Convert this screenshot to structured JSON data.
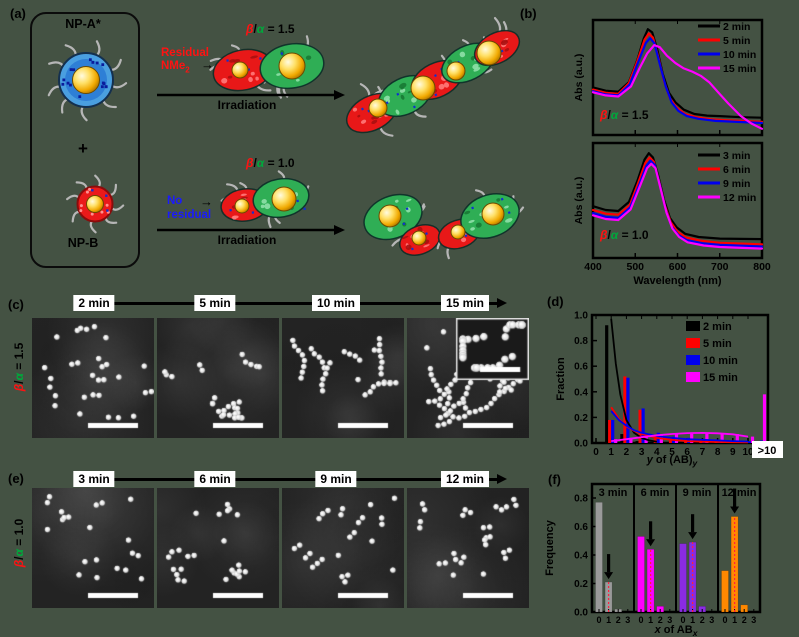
{
  "colors": {
    "background": "#445243",
    "black": "#000000",
    "red": "#ff0000",
    "blue": "#0000ee",
    "magenta": "#ff00ff",
    "gray_bars": "#9a9a9a",
    "violet_bars": "#8a2be2",
    "orange_bars": "#ff8800",
    "np_a_shell": "#4a9fe0",
    "np_b_shell": "#ea1a1a",
    "blob_green": "#2fae55",
    "blob_red": "#e81818",
    "gold_core": "#ffd24a",
    "polymer_gray": "#b6b6b6"
  },
  "symbols": {
    "beta": "β",
    "slash": "/",
    "alpha": "α"
  },
  "panel_a": {
    "label": "(a)",
    "np_a_label": "NP-A*",
    "plus": "+",
    "np_b_label": "NP-B",
    "residual_line1": "Residual",
    "residual_line2_base": "NMe",
    "residual_line2_sub": "2",
    "small_arrow": "→",
    "no_residual_line1": "No",
    "no_residual_line2": "residual",
    "irradiation_top": "Irradiation",
    "irradiation_bottom": "Irradiation",
    "ratio_top_eq": " = 1.5",
    "ratio_bottom_eq": " = 1.0"
  },
  "panel_b": {
    "label": "(b)",
    "ratio_top_eq": " = 1.5",
    "ratio_bottom_eq": " = 1.0"
  },
  "panel_c": {
    "label": "(c)",
    "ratio_eq": " = 1.5",
    "times": [
      "2 min",
      "5 min",
      "10 min",
      "15 min"
    ]
  },
  "panel_d": {
    "label": "(d)"
  },
  "panel_e": {
    "label": "(e)",
    "ratio_eq": " = 1.0",
    "times": [
      "3 min",
      "6 min",
      "9 min",
      "12 min"
    ]
  },
  "panel_f": {
    "label": "(f)"
  },
  "chart_data": [
    {
      "id": "spec-top",
      "type": "line",
      "ylabel": "Abs (a.u.)",
      "xlabel": "Wavelength (nm)",
      "xlim": [
        400,
        800
      ],
      "xticks": [
        "400",
        "500",
        "600",
        "700",
        "800"
      ],
      "show_xticklabels": false,
      "annotation": "β/α = 1.5",
      "legend_position": "top-right",
      "series": [
        {
          "name": "2 min",
          "color": "#000000",
          "points": [
            [
              400,
              0.42
            ],
            [
              430,
              0.39
            ],
            [
              460,
              0.38
            ],
            [
              485,
              0.47
            ],
            [
              505,
              0.68
            ],
            [
              520,
              0.88
            ],
            [
              530,
              0.97
            ],
            [
              540,
              0.94
            ],
            [
              552,
              0.78
            ],
            [
              565,
              0.55
            ],
            [
              580,
              0.37
            ],
            [
              595,
              0.28
            ],
            [
              615,
              0.21
            ],
            [
              640,
              0.17
            ],
            [
              670,
              0.155
            ],
            [
              700,
              0.15
            ],
            [
              750,
              0.14
            ],
            [
              800,
              0.135
            ]
          ]
        },
        {
          "name": "5 min",
          "color": "#ff0000",
          "points": [
            [
              400,
              0.4
            ],
            [
              430,
              0.37
            ],
            [
              460,
              0.36
            ],
            [
              485,
              0.46
            ],
            [
              505,
              0.67
            ],
            [
              522,
              0.87
            ],
            [
              532,
              0.93
            ],
            [
              542,
              0.89
            ],
            [
              555,
              0.7
            ],
            [
              568,
              0.48
            ],
            [
              582,
              0.32
            ],
            [
              598,
              0.23
            ],
            [
              618,
              0.17
            ],
            [
              645,
              0.14
            ],
            [
              680,
              0.12
            ],
            [
              720,
              0.11
            ],
            [
              800,
              0.095
            ]
          ]
        },
        {
          "name": "10 min",
          "color": "#0000ee",
          "points": [
            [
              400,
              0.385
            ],
            [
              430,
              0.355
            ],
            [
              460,
              0.345
            ],
            [
              487,
              0.45
            ],
            [
              507,
              0.66
            ],
            [
              525,
              0.84
            ],
            [
              535,
              0.885
            ],
            [
              545,
              0.84
            ],
            [
              558,
              0.64
            ],
            [
              572,
              0.43
            ],
            [
              586,
              0.28
            ],
            [
              602,
              0.2
            ],
            [
              622,
              0.15
            ],
            [
              650,
              0.125
            ],
            [
              690,
              0.105
            ],
            [
              800,
              0.085
            ]
          ]
        },
        {
          "name": "15 min",
          "color": "#ff00ff",
          "points": [
            [
              400,
              0.375
            ],
            [
              430,
              0.345
            ],
            [
              460,
              0.335
            ],
            [
              490,
              0.43
            ],
            [
              510,
              0.6
            ],
            [
              528,
              0.74
            ],
            [
              545,
              0.82
            ],
            [
              558,
              0.8
            ],
            [
              575,
              0.72
            ],
            [
              595,
              0.65
            ],
            [
              615,
              0.6
            ],
            [
              635,
              0.57
            ],
            [
              655,
              0.53
            ],
            [
              675,
              0.47
            ],
            [
              695,
              0.38
            ],
            [
              720,
              0.27
            ],
            [
              750,
              0.15
            ],
            [
              775,
              0.08
            ],
            [
              800,
              0.03
            ]
          ]
        }
      ]
    },
    {
      "id": "spec-bottom",
      "type": "line",
      "ylabel": "Abs (a.u.)",
      "xlabel": "Wavelength (nm)",
      "xlim": [
        400,
        800
      ],
      "xticks": [
        "400",
        "500",
        "600",
        "700",
        "800"
      ],
      "show_xticklabels": true,
      "annotation": "β/α = 1.0",
      "legend_position": "top-right",
      "series": [
        {
          "name": "3 min",
          "color": "#000000",
          "points": [
            [
              400,
              0.46
            ],
            [
              430,
              0.425
            ],
            [
              460,
              0.415
            ],
            [
              485,
              0.5
            ],
            [
              505,
              0.7
            ],
            [
              522,
              0.9
            ],
            [
              532,
              0.96
            ],
            [
              542,
              0.92
            ],
            [
              555,
              0.74
            ],
            [
              568,
              0.52
            ],
            [
              582,
              0.35
            ],
            [
              598,
              0.26
            ],
            [
              618,
              0.2
            ],
            [
              650,
              0.17
            ],
            [
              700,
              0.155
            ],
            [
              800,
              0.15
            ]
          ]
        },
        {
          "name": "6 min",
          "color": "#ff0000",
          "points": [
            [
              400,
              0.425
            ],
            [
              430,
              0.39
            ],
            [
              460,
              0.38
            ],
            [
              487,
              0.47
            ],
            [
              507,
              0.68
            ],
            [
              524,
              0.87
            ],
            [
              534,
              0.92
            ],
            [
              544,
              0.88
            ],
            [
              557,
              0.69
            ],
            [
              570,
              0.47
            ],
            [
              584,
              0.31
            ],
            [
              600,
              0.22
            ],
            [
              620,
              0.165
            ],
            [
              655,
              0.135
            ],
            [
              700,
              0.115
            ],
            [
              800,
              0.1
            ]
          ]
        },
        {
          "name": "9 min",
          "color": "#0000ee",
          "points": [
            [
              400,
              0.395
            ],
            [
              430,
              0.36
            ],
            [
              460,
              0.35
            ],
            [
              488,
              0.45
            ],
            [
              509,
              0.66
            ],
            [
              526,
              0.84
            ],
            [
              536,
              0.89
            ],
            [
              546,
              0.85
            ],
            [
              559,
              0.65
            ],
            [
              572,
              0.43
            ],
            [
              586,
              0.27
            ],
            [
              602,
              0.19
            ],
            [
              622,
              0.14
            ],
            [
              660,
              0.11
            ],
            [
              700,
              0.095
            ],
            [
              800,
              0.08
            ]
          ]
        },
        {
          "name": "12 min",
          "color": "#ff00ff",
          "points": [
            [
              400,
              0.375
            ],
            [
              430,
              0.34
            ],
            [
              460,
              0.33
            ],
            [
              489,
              0.43
            ],
            [
              510,
              0.64
            ],
            [
              528,
              0.82
            ],
            [
              538,
              0.86
            ],
            [
              548,
              0.82
            ],
            [
              561,
              0.61
            ],
            [
              574,
              0.4
            ],
            [
              588,
              0.25
            ],
            [
              604,
              0.17
            ],
            [
              624,
              0.12
            ],
            [
              662,
              0.09
            ],
            [
              700,
              0.075
            ],
            [
              800,
              0.06
            ]
          ]
        }
      ]
    },
    {
      "id": "dist",
      "type": "bar+line",
      "ylabel": "Fraction",
      "xlabel_pre": "y",
      "xlabel_mid": " of (AB)",
      "xlabel_sub": "y",
      "yticks": [
        "0.0",
        "0.2",
        "0.4",
        "0.6",
        "0.8",
        "1.0"
      ],
      "xticks": [
        "0",
        "1",
        "2",
        "3",
        "4",
        "5",
        "6",
        "7",
        "8",
        "9",
        "10"
      ],
      "gt_label": ">10",
      "ylim": [
        0,
        1
      ],
      "legend_position": "top-right",
      "series": [
        {
          "name": "2 min",
          "color": "#000000",
          "values": {
            "1": 0.92,
            "2": 0.07,
            "3": 0.015
          }
        },
        {
          "name": "5 min",
          "color": "#ff0000",
          "values": {
            "1": 0.18,
            "2": 0.52,
            "3": 0.26,
            "4": 0.05,
            "5": 0.035,
            "6": 0.025,
            "7": 0.02,
            "8": 0.015,
            "9": 0.012,
            "10": 0.01
          }
        },
        {
          "name": "10 min",
          "color": "#0000ee",
          "values": {
            "1": 0.18,
            "2": 0.51,
            "3": 0.27,
            "4": 0.08,
            "5": 0.05,
            "6": 0.04,
            "7": 0.03,
            "8": 0.025,
            "9": 0.02,
            "10": 0.015,
            "gt": 0.02
          }
        },
        {
          "name": "15 min",
          "color": "#ff00ff",
          "values": {
            "1": 0.03,
            "2": 0.04,
            "3": 0.05,
            "4": 0.065,
            "5": 0.075,
            "6": 0.08,
            "7": 0.08,
            "8": 0.075,
            "9": 0.07,
            "10": 0.05,
            "gt": 0.38
          }
        }
      ],
      "fit_curves": [
        {
          "color": "#000000",
          "points": [
            [
              1,
              0.97
            ],
            [
              1.3,
              0.62
            ],
            [
              1.6,
              0.38
            ],
            [
              2,
              0.18
            ],
            [
              2.5,
              0.08
            ],
            [
              3,
              0.04
            ],
            [
              3.5,
              0.02
            ],
            [
              4,
              0.01
            ]
          ]
        },
        {
          "color": "#ff0000",
          "points": [
            [
              1,
              0.28
            ],
            [
              1.5,
              0.19
            ],
            [
              2,
              0.13
            ],
            [
              2.5,
              0.095
            ],
            [
              3,
              0.07
            ],
            [
              4,
              0.04
            ],
            [
              5,
              0.025
            ],
            [
              6,
              0.015
            ],
            [
              7,
              0.01
            ],
            [
              8,
              0.008
            ],
            [
              9,
              0.006
            ],
            [
              10,
              0.005
            ]
          ]
        },
        {
          "color": "#0000ee",
          "points": [
            [
              1,
              0.25
            ],
            [
              1.5,
              0.18
            ],
            [
              2,
              0.135
            ],
            [
              2.5,
              0.1
            ],
            [
              3,
              0.08
            ],
            [
              4,
              0.055
            ],
            [
              5,
              0.04
            ],
            [
              6,
              0.03
            ],
            [
              7,
              0.025
            ],
            [
              8,
              0.02
            ],
            [
              9,
              0.015
            ],
            [
              10,
              0.012
            ]
          ]
        },
        {
          "color": "#ff00ff",
          "points": [
            [
              1,
              0.015
            ],
            [
              2,
              0.03
            ],
            [
              3,
              0.045
            ],
            [
              4,
              0.06
            ],
            [
              5,
              0.07
            ],
            [
              6,
              0.077
            ],
            [
              7,
              0.079
            ],
            [
              8,
              0.076
            ],
            [
              9,
              0.068
            ],
            [
              10,
              0.05
            ]
          ]
        }
      ]
    },
    {
      "id": "freq",
      "type": "bar",
      "ylabel": "Frequency",
      "xlabel_pre": "x",
      "xlabel_mid": " of AB",
      "xlabel_sub": "x",
      "yticks": [
        "0.0",
        "0.2",
        "0.4",
        "0.6",
        "0.8"
      ],
      "xticks": [
        "0",
        "1",
        "2",
        "3"
      ],
      "ylim": [
        0,
        0.89
      ],
      "panels": [
        {
          "label": "3 min",
          "color": "#9a9a9a",
          "values": [
            0.77,
            0.21,
            0.02,
            0
          ],
          "arrow_at": 1
        },
        {
          "label": "6 min",
          "color": "#ff00ff",
          "values": [
            0.53,
            0.44,
            0.04,
            0
          ],
          "arrow_at": 1
        },
        {
          "label": "9 min",
          "color": "#8a2be2",
          "values": [
            0.48,
            0.49,
            0.04,
            0
          ],
          "arrow_at": 1
        },
        {
          "label": "12 min",
          "color": "#ff8800",
          "values": [
            0.29,
            0.67,
            0.05,
            0
          ],
          "arrow_at": 1
        }
      ]
    }
  ],
  "tem": {
    "c": [
      {
        "mode": "singles",
        "count": 26
      },
      {
        "mode": "chains",
        "chains": [
          2,
          3,
          5,
          4,
          2,
          6,
          3
        ],
        "singles": 4
      },
      {
        "mode": "chains",
        "chains": [
          7,
          9,
          5,
          6,
          8,
          4
        ],
        "singles": 2
      },
      {
        "mode": "network",
        "has_inset": true
      }
    ],
    "e": [
      {
        "mode": "dimers",
        "singles": 13,
        "pairs": 4,
        "triples": 0
      },
      {
        "mode": "dimers",
        "singles": 8,
        "pairs": 7,
        "triples": 1
      },
      {
        "mode": "dimers",
        "singles": 7,
        "pairs": 8,
        "triples": 1
      },
      {
        "mode": "dimers",
        "singles": 5,
        "pairs": 9,
        "triples": 2
      }
    ]
  }
}
